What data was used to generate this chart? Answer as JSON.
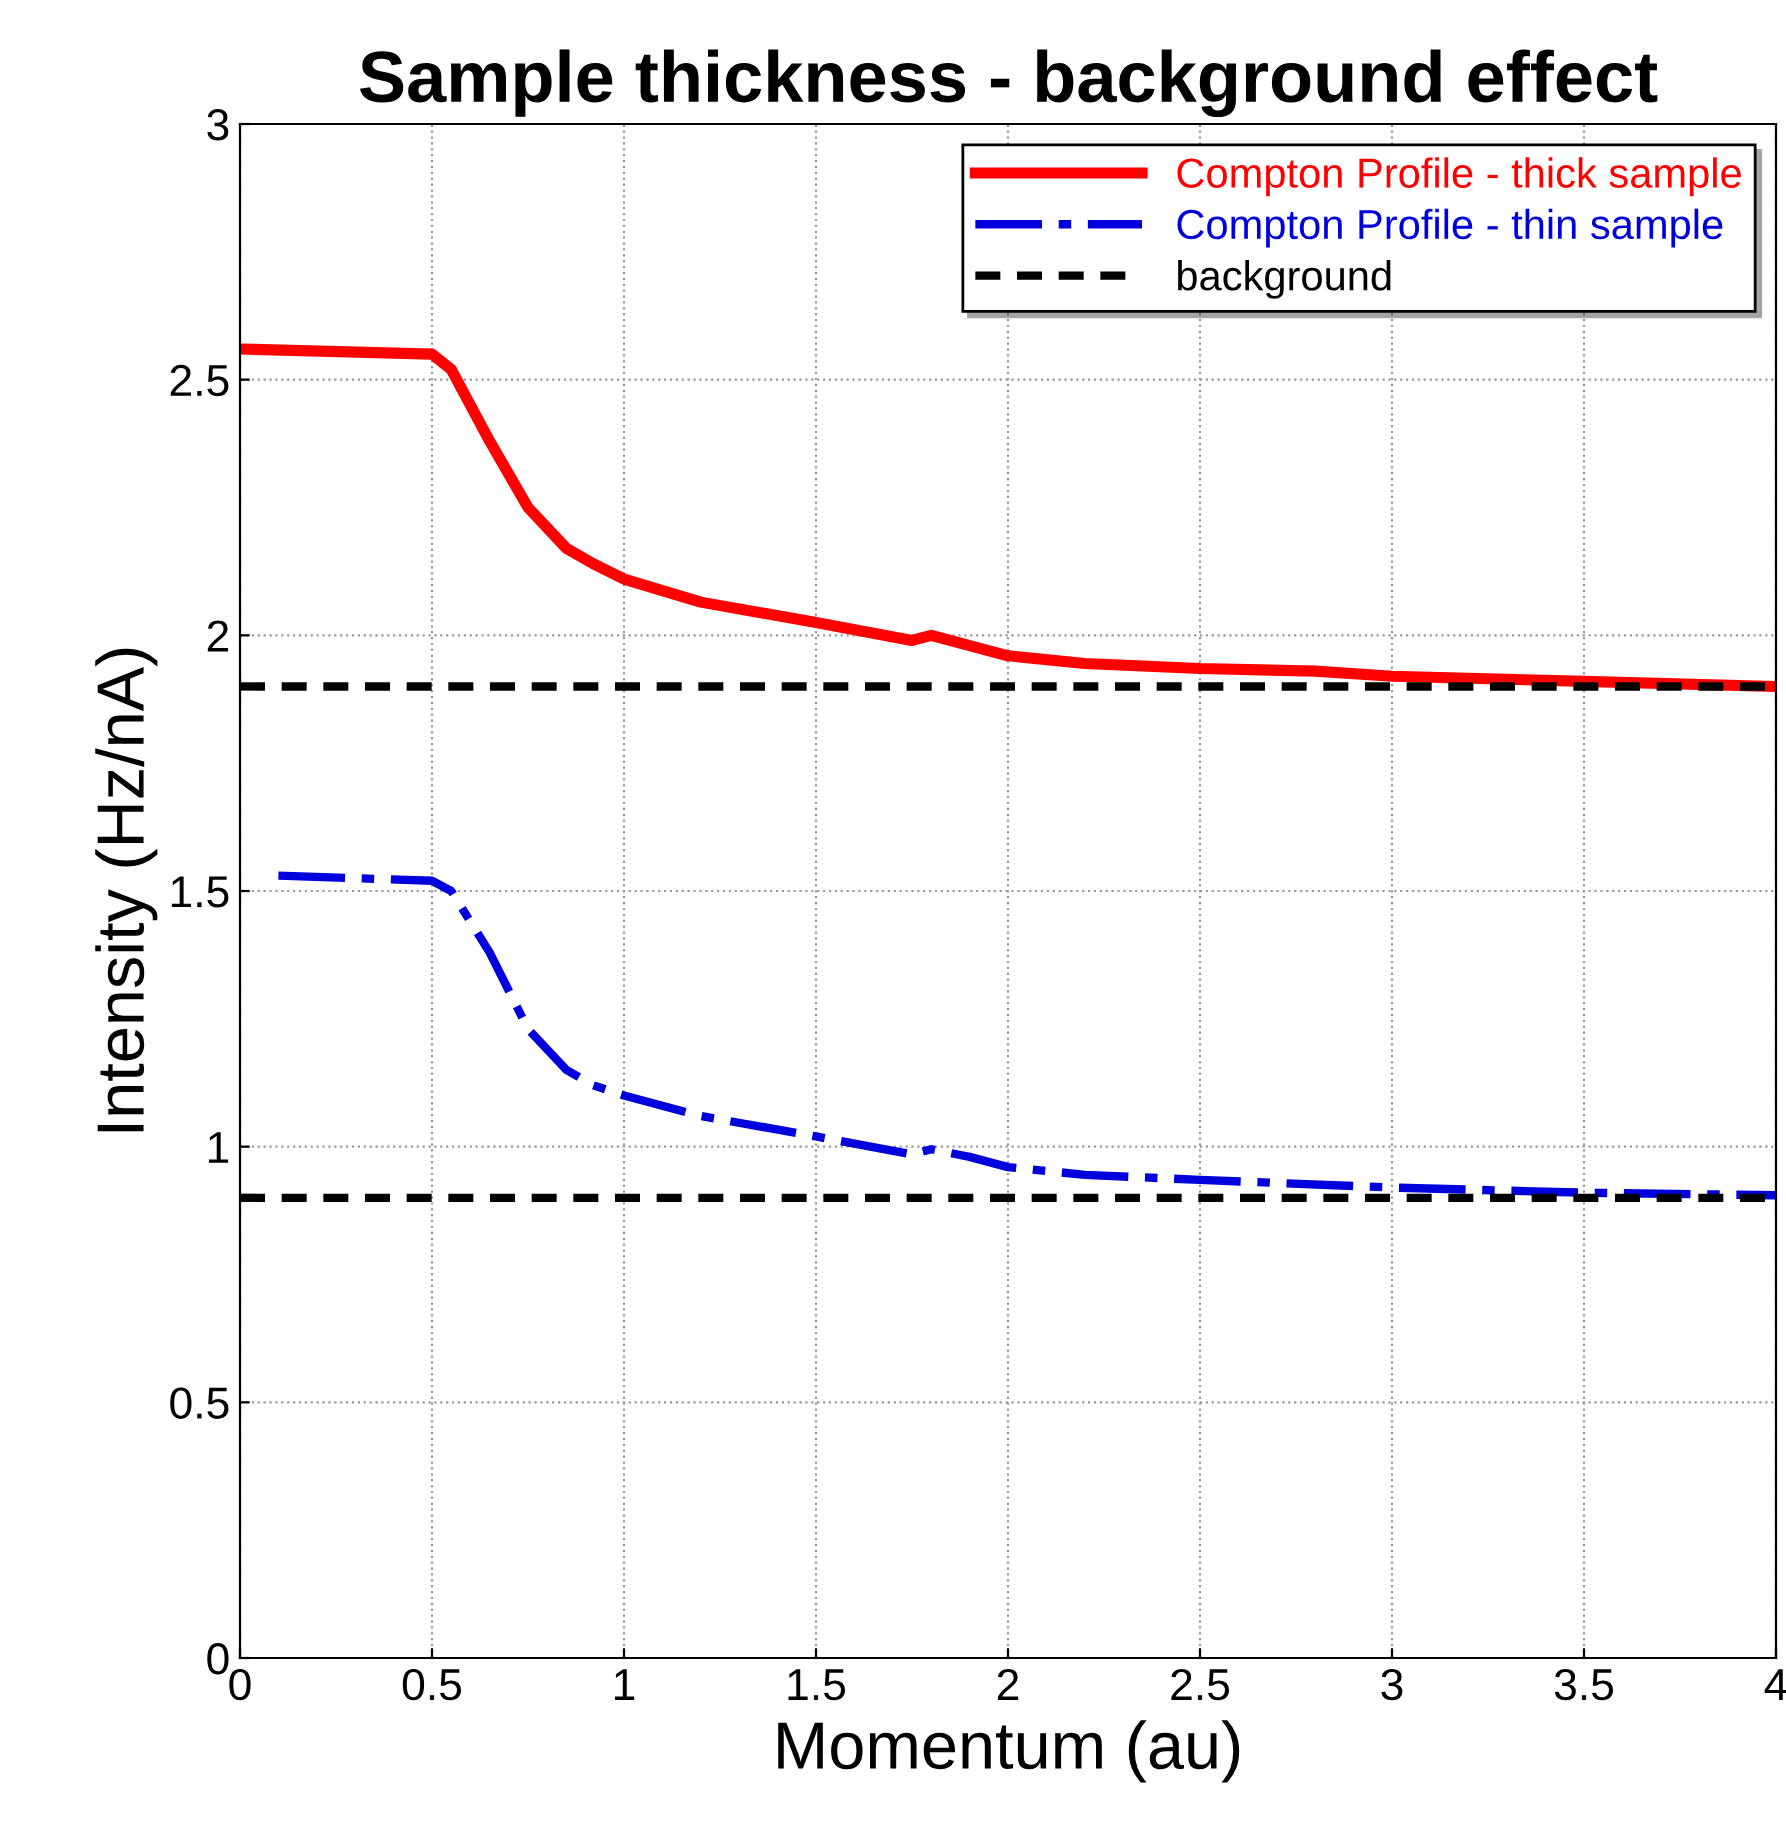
{
  "chart_data": {
    "type": "line",
    "title": "Sample thickness - background effect",
    "xlabel": "Momentum (au)",
    "ylabel": "Intensity (Hz/nA)",
    "xlim": [
      0,
      4
    ],
    "xticks": [
      0,
      0.5,
      1,
      1.5,
      2,
      2.5,
      3,
      3.5,
      4
    ],
    "ylim": [
      0,
      3
    ],
    "yticks": [
      0,
      0.5,
      1,
      1.5,
      2,
      2.5,
      3
    ],
    "grid": true,
    "legend": "top right",
    "series": [
      {
        "name": "Compton Profile - thick sample",
        "color": "#ff0000",
        "line_style": "solid",
        "x": [
          0,
          0.5,
          0.55,
          0.65,
          0.75,
          0.85,
          0.92,
          1.0,
          1.2,
          1.5,
          1.75,
          1.8,
          1.9,
          2.0,
          2.2,
          2.5,
          2.8,
          3.0,
          3.5,
          4.0
        ],
        "values": [
          2.56,
          2.55,
          2.52,
          2.38,
          2.25,
          2.17,
          2.14,
          2.11,
          2.065,
          2.025,
          1.99,
          2.0,
          1.98,
          1.96,
          1.945,
          1.935,
          1.93,
          1.92,
          1.91,
          1.9
        ]
      },
      {
        "name": "Compton Profile - thin sample",
        "color": "#0000dd",
        "line_style": "dashdot",
        "x": [
          0.1,
          0.5,
          0.55,
          0.65,
          0.75,
          0.85,
          0.92,
          1.0,
          1.2,
          1.5,
          1.75,
          1.8,
          1.9,
          2.0,
          2.2,
          2.5,
          3.0,
          3.5,
          4.0
        ],
        "values": [
          1.53,
          1.52,
          1.5,
          1.38,
          1.23,
          1.15,
          1.12,
          1.1,
          1.06,
          1.02,
          0.985,
          0.995,
          0.98,
          0.96,
          0.945,
          0.935,
          0.92,
          0.91,
          0.905
        ]
      }
    ],
    "ref_lines": [
      {
        "axis": "y",
        "value": 1.9,
        "label": "background",
        "color": "#000000",
        "line_style": "dashed"
      },
      {
        "axis": "y",
        "value": 0.9,
        "color": "#000000",
        "line_style": "dashed"
      }
    ]
  }
}
